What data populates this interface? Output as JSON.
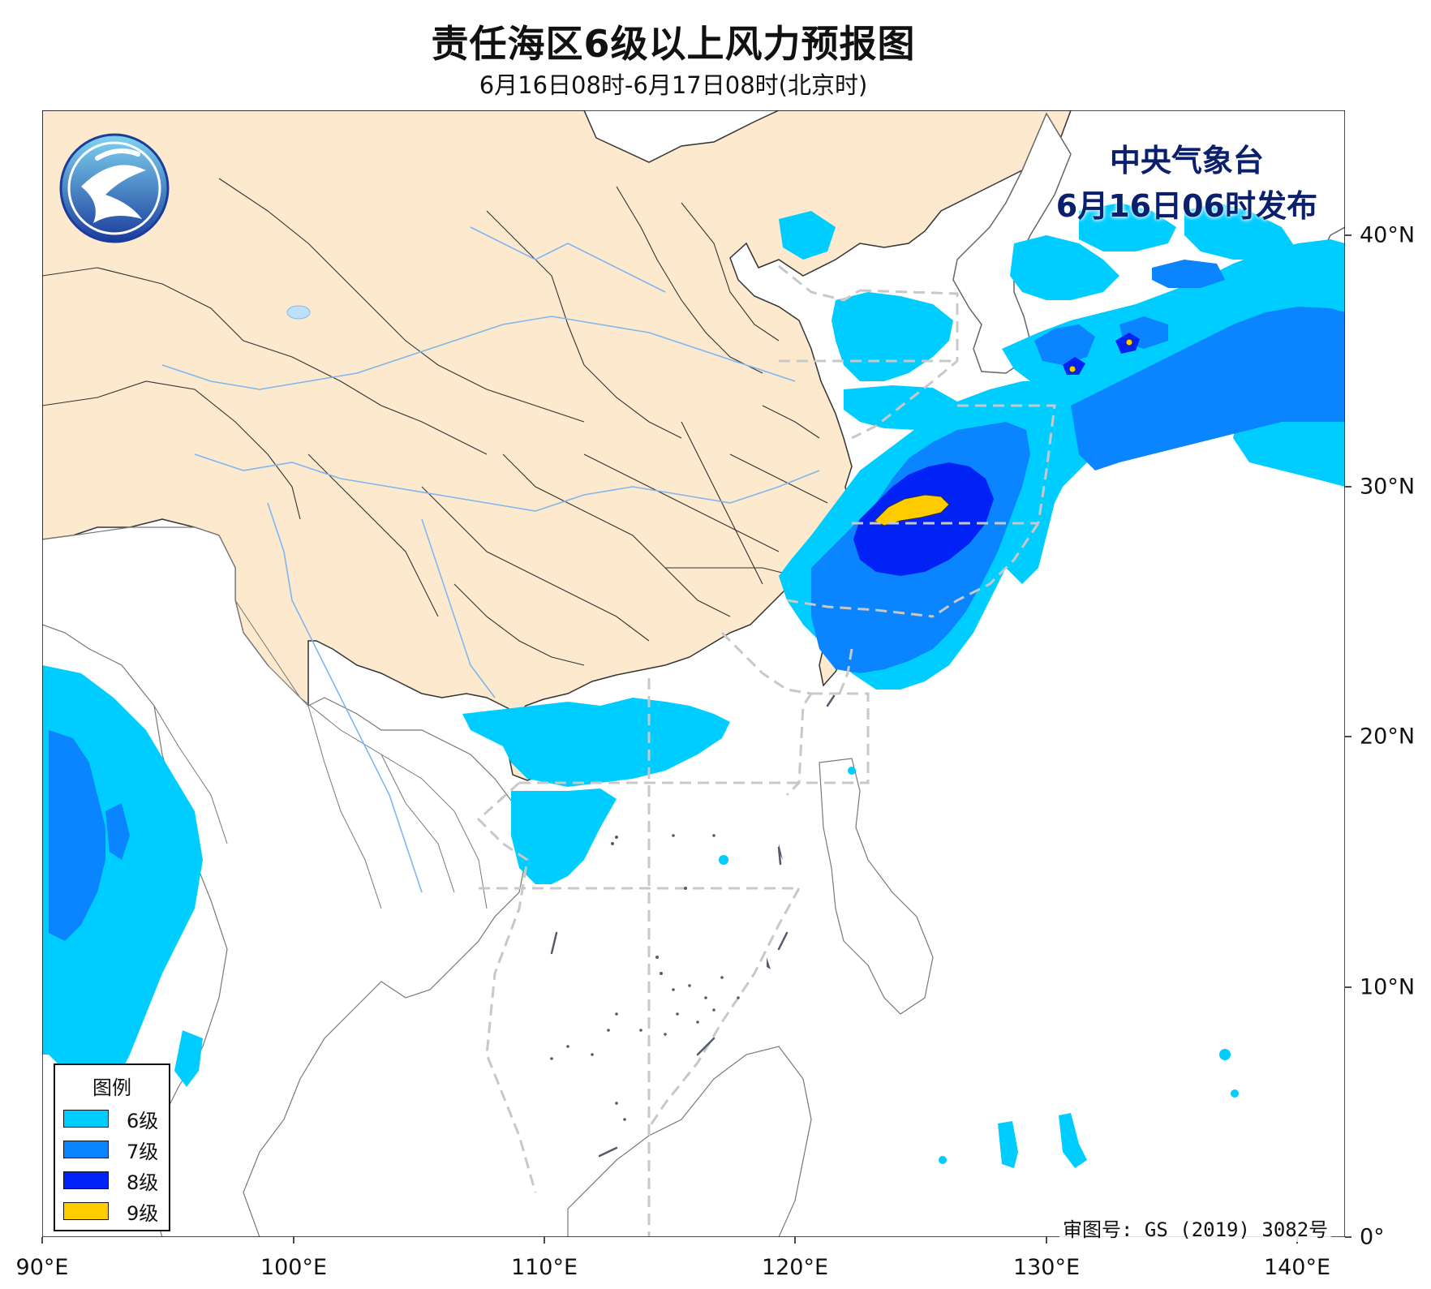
{
  "title": "责任海区6级以上风力预报图",
  "subtitle": "6月16日08时-6月17日08时(北京时)",
  "issuer": {
    "name": "中央气象台",
    "issue_time": "6月16日06时发布"
  },
  "approval_number": "审图号: GS (2019) 3082号",
  "logo": {
    "icon": "cma-logo-icon"
  },
  "axes": {
    "x_ticks": [
      "90°E",
      "100°E",
      "110°E",
      "120°E",
      "130°E",
      "140°E"
    ],
    "y_ticks": [
      "40°N",
      "30°N",
      "20°N",
      "10°N",
      "0°"
    ]
  },
  "legend": {
    "title": "图例",
    "items": [
      {
        "label": "6级",
        "color": "#00cdff"
      },
      {
        "label": "7级",
        "color": "#0a84ff"
      },
      {
        "label": "8级",
        "color": "#0022f5"
      },
      {
        "label": "9级",
        "color": "#ffcc00"
      }
    ]
  },
  "colors": {
    "land_china": "#fce9ce",
    "sea": "#ffffff",
    "boundary": "#333333",
    "river": "#7fb6f0",
    "sea_zone_line": "#c8c8c8",
    "issuer_text": "#0a1f6e"
  }
}
